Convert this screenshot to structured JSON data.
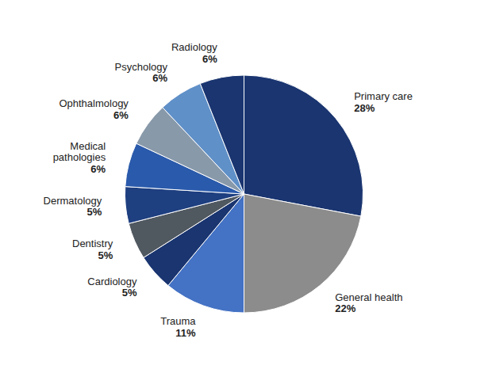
{
  "chart_data": {
    "type": "pie",
    "categories": [
      "Primary care",
      "General health",
      "Trauma",
      "Cardiology",
      "Dentistry",
      "Dermatology",
      "Medical\npathologies",
      "Ophthalmology",
      "Psychology",
      "Radiology"
    ],
    "values": [
      28,
      22,
      11,
      5,
      5,
      5,
      6,
      6,
      6,
      6
    ],
    "value_labels": [
      "28%",
      "22%",
      "11%",
      "5%",
      "5%",
      "5%",
      "6%",
      "6%",
      "6%",
      "6%"
    ],
    "colors": [
      "#1a3570",
      "#8c8c8c",
      "#4472c4",
      "#1a3570",
      "#505860",
      "#1e3f80",
      "#2a5aab",
      "#8899aa",
      "#6090c8",
      "#1a3570"
    ],
    "data_labels": true
  }
}
